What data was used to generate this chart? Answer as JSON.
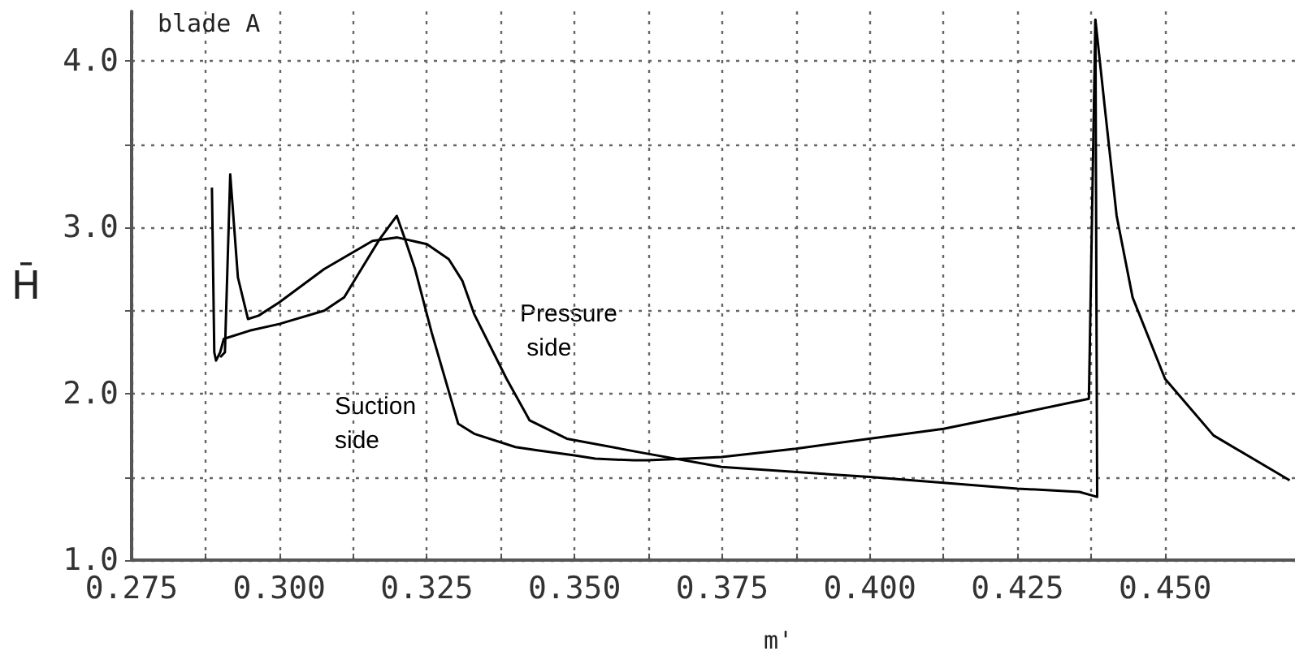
{
  "chart_data": {
    "type": "line",
    "title": "blade A",
    "xlabel": "m'",
    "ylabel": "H̄",
    "xlim": [
      0.275,
      0.472
    ],
    "ylim": [
      1.0,
      4.3
    ],
    "xticks": [
      0.275,
      {
        "value": 0.2875,
        "label": null
      },
      {
        "value": 0.3,
        "label": "0.300"
      },
      {
        "value": 0.3125,
        "label": null
      },
      0.325,
      {
        "value": 0.3375,
        "label": null
      },
      {
        "value": 0.35,
        "label": "0.350"
      },
      {
        "value": 0.3625,
        "label": null
      },
      0.375,
      {
        "value": 0.3875,
        "label": null
      },
      {
        "value": 0.4,
        "label": "0.400"
      },
      {
        "value": 0.4125,
        "label": null
      },
      0.425,
      {
        "value": 0.4375,
        "label": null
      },
      {
        "value": 0.45,
        "label": "0.450"
      }
    ],
    "yticks": [
      {
        "value": 1,
        "label": "1.0"
      },
      {
        "value": 1.5,
        "label": null
      },
      {
        "value": 2,
        "label": "2.0"
      },
      {
        "value": 2.5,
        "label": null
      },
      {
        "value": 3,
        "label": "3.0"
      },
      {
        "value": 3.5,
        "label": null
      },
      {
        "value": 4,
        "label": "4.0"
      }
    ],
    "grid": true,
    "marker": "none",
    "line_style": "solid",
    "series": [
      {
        "color": "#000000",
        "x": [
          0.2886,
          0.289,
          0.2893,
          0.29,
          0.2906,
          0.295,
          0.3,
          0.3076,
          0.311,
          0.3139,
          0.317,
          0.3199,
          0.3213,
          0.323,
          0.3258,
          0.3303,
          0.333,
          0.34,
          0.3437,
          0.35,
          0.3535,
          0.36,
          0.3623,
          0.369,
          0.3749,
          0.3875,
          0.3999,
          0.4125,
          0.425,
          0.4371,
          0.4382,
          0.4398,
          0.4418,
          0.4445,
          0.45,
          0.4582,
          0.4711
        ],
        "values": [
          3.24,
          2.25,
          2.2,
          2.25,
          2.33,
          2.38,
          2.42,
          2.5,
          2.58,
          2.75,
          2.93,
          3.07,
          2.93,
          2.75,
          2.37,
          1.82,
          1.76,
          1.68,
          1.66,
          1.63,
          1.61,
          1.6,
          1.6,
          1.61,
          1.62,
          1.67,
          1.73,
          1.79,
          1.88,
          1.97,
          4.25,
          3.72,
          3.07,
          2.58,
          2.09,
          1.75,
          1.48
        ]
      },
      {
        "color": "#000000",
        "x": [
          0.29,
          0.2908,
          0.2917,
          0.293,
          0.2947,
          0.2965,
          0.3,
          0.3076,
          0.3158,
          0.32,
          0.325,
          0.3287,
          0.331,
          0.333,
          0.3385,
          0.3424,
          0.3487,
          0.3623,
          0.3749,
          0.3999,
          0.425,
          0.4355,
          0.4385,
          0.4382
        ],
        "values": [
          2.22,
          2.25,
          3.32,
          2.7,
          2.45,
          2.47,
          2.55,
          2.75,
          2.92,
          2.94,
          2.9,
          2.81,
          2.68,
          2.48,
          2.09,
          1.84,
          1.73,
          1.64,
          1.56,
          1.5,
          1.43,
          1.41,
          1.38,
          4.25
        ]
      }
    ],
    "annotations": [
      "Pressure side",
      "Suction side"
    ]
  }
}
